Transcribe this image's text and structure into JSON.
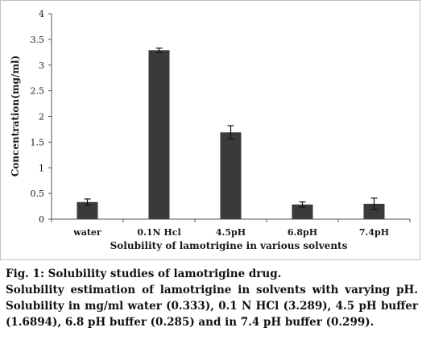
{
  "caption": {
    "title": "Fig. 1: Solubility studies of lamotrigine drug.",
    "body": "Solubility estimation of lamotrigine in solvents with varying pH. Solubility in mg/ml water (0.333), 0.1 N HCl (3.289), 4.5 pH buffer (1.6894), 6.8 pH buffer (0.285) and in 7.4 pH buffer (0.299)."
  },
  "chart_data": {
    "type": "bar",
    "categories": [
      "water",
      "0.1N Hcl",
      "4.5pH",
      "6.8pH",
      "7.4pH"
    ],
    "values": [
      0.333,
      3.289,
      1.6894,
      0.285,
      0.299
    ],
    "error": [
      0.06,
      0.04,
      0.13,
      0.05,
      0.11
    ],
    "xlabel": "Solubility of lamotrigine  in various solvents",
    "ylabel": "Concentration(mg/ml)",
    "ylim": [
      0,
      4
    ],
    "yticks": [
      "0",
      "0.5",
      "1",
      "1.5",
      "2",
      "2.5",
      "3",
      "3.5",
      "4"
    ],
    "grid": false,
    "bar_color": "#3a3a3a",
    "error_bars": true
  }
}
